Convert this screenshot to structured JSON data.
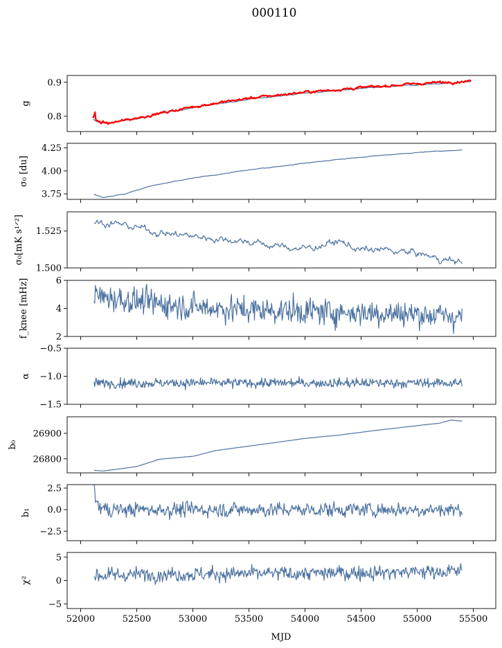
{
  "figure": {
    "title": "000110",
    "xlabel": "MJD"
  },
  "colors": {
    "series": "#4c72a0",
    "reference": "#ff0000",
    "axis": "#000000"
  },
  "chart_data": {
    "type": "line",
    "title": "000110",
    "xlabel": "MJD",
    "xlim": [
      51880,
      55700
    ],
    "xticks": [
      52000,
      52500,
      53000,
      53500,
      54000,
      54500,
      55000,
      55500
    ],
    "grid": false,
    "panels": [
      {
        "id": "g",
        "ylabel": "g",
        "ylim": [
          0.755,
          0.92
        ],
        "yticks": [
          0.8,
          0.9
        ],
        "yticklabels": [
          "0.8",
          "0.9"
        ],
        "series": [
          {
            "color": "#4c72a0",
            "x_range": [
              52110,
              55480
            ],
            "noise": 0.002,
            "smooth": 0.9,
            "trend": [
              [
                52110,
                0.79
              ],
              [
                52150,
                0.783
              ],
              [
                52250,
                0.779
              ],
              [
                52500,
                0.793
              ],
              [
                53000,
                0.826
              ],
              [
                53500,
                0.85
              ],
              [
                54000,
                0.868
              ],
              [
                54500,
                0.881
              ],
              [
                55000,
                0.892
              ],
              [
                55480,
                0.902
              ]
            ]
          },
          {
            "color": "#ff0000",
            "x_range": [
              52110,
              55480
            ],
            "noise": 0.0025,
            "smooth": 0.7,
            "trend": [
              [
                52110,
                0.795
              ],
              [
                52130,
                0.812
              ],
              [
                52135,
                0.788
              ],
              [
                52160,
                0.783
              ],
              [
                52250,
                0.779
              ],
              [
                52500,
                0.795
              ],
              [
                53000,
                0.828
              ],
              [
                53500,
                0.853
              ],
              [
                54000,
                0.871
              ],
              [
                54500,
                0.884
              ],
              [
                55000,
                0.896
              ],
              [
                55480,
                0.904
              ]
            ]
          }
        ]
      },
      {
        "id": "sigma0-du",
        "ylabel": "σ₀ [du]",
        "ylim": [
          3.69,
          4.3
        ],
        "yticks": [
          3.75,
          4.0,
          4.25
        ],
        "yticklabels": [
          "3.75",
          "4.00",
          "4.25"
        ],
        "series": [
          {
            "color": "#4c72a0",
            "x_range": [
              52120,
              55400
            ],
            "noise": 0.004,
            "smooth": 0.85,
            "trend": [
              [
                52120,
                3.745
              ],
              [
                52200,
                3.715
              ],
              [
                52400,
                3.75
              ],
              [
                52600,
                3.83
              ],
              [
                53000,
                3.92
              ],
              [
                53500,
                4.01
              ],
              [
                54000,
                4.085
              ],
              [
                54500,
                4.15
              ],
              [
                55000,
                4.2
              ],
              [
                55400,
                4.23
              ]
            ]
          }
        ]
      },
      {
        "id": "sigma0-mks",
        "ylabel": "σ₀[mK s¹ᐟ²]",
        "ylim": [
          1.5,
          1.538
        ],
        "yticks": [
          1.5,
          1.525
        ],
        "yticklabels": [
          "1.500",
          "1.525"
        ],
        "series": [
          {
            "color": "#4c72a0",
            "x_range": [
              52120,
              55400
            ],
            "noise": 0.0022,
            "smooth": 0.8,
            "trend": [
              [
                52120,
                1.531
              ],
              [
                52300,
                1.53
              ],
              [
                52800,
                1.523
              ],
              [
                53200,
                1.52
              ],
              [
                53500,
                1.518
              ],
              [
                53700,
                1.515
              ],
              [
                54000,
                1.513
              ],
              [
                54300,
                1.518
              ],
              [
                54500,
                1.512
              ],
              [
                54700,
                1.512
              ],
              [
                55000,
                1.51
              ],
              [
                55200,
                1.506
              ],
              [
                55400,
                1.504
              ]
            ]
          }
        ]
      },
      {
        "id": "fknee",
        "ylabel": "f_knee [mHz]",
        "ylim": [
          2,
          6
        ],
        "yticks": [
          2,
          4,
          6
        ],
        "yticklabels": [
          "2",
          "4",
          "6"
        ],
        "series": [
          {
            "color": "#4c72a0",
            "x_range": [
              52120,
              55400
            ],
            "noise": 0.55,
            "smooth": 0.1,
            "trend": [
              [
                52120,
                4.9
              ],
              [
                52500,
                4.5
              ],
              [
                53000,
                4.1
              ],
              [
                53500,
                3.9
              ],
              [
                54000,
                3.8
              ],
              [
                54500,
                3.7
              ],
              [
                55000,
                3.6
              ],
              [
                55400,
                3.4
              ]
            ]
          }
        ]
      },
      {
        "id": "alpha",
        "ylabel": "α",
        "ylim": [
          -1.5,
          -0.5
        ],
        "yticks": [
          -1.5,
          -1.0,
          -0.5
        ],
        "yticklabels": [
          "−1.5",
          "−1.0",
          "−0.5"
        ],
        "series": [
          {
            "color": "#4c72a0",
            "x_range": [
              52120,
              55400
            ],
            "noise": 0.05,
            "smooth": 0.1,
            "trend": [
              [
                52120,
                -1.12
              ],
              [
                55400,
                -1.12
              ]
            ]
          }
        ]
      },
      {
        "id": "b0",
        "ylabel": "b₀",
        "ylim": [
          26745,
          26965
        ],
        "yticks": [
          26800,
          26900
        ],
        "yticklabels": [
          "26800",
          "26900"
        ],
        "series": [
          {
            "color": "#4c72a0",
            "x_range": [
              52120,
              55400
            ],
            "noise": 0.4,
            "smooth": 0.9,
            "trend": [
              [
                52120,
                26755
              ],
              [
                52200,
                26752
              ],
              [
                52500,
                26770
              ],
              [
                52700,
                26798
              ],
              [
                53000,
                26810
              ],
              [
                53200,
                26832
              ],
              [
                53500,
                26850
              ],
              [
                53800,
                26868
              ],
              [
                54000,
                26880
              ],
              [
                54300,
                26893
              ],
              [
                54600,
                26910
              ],
              [
                55000,
                26930
              ],
              [
                55200,
                26940
              ],
              [
                55300,
                26952
              ],
              [
                55400,
                26948
              ]
            ]
          }
        ]
      },
      {
        "id": "b1",
        "ylabel": "b₁",
        "ylim": [
          -3.6,
          2.9
        ],
        "yticks": [
          -2.5,
          0.0,
          2.5
        ],
        "yticklabels": [
          "−2.5",
          "0.0",
          "2.5"
        ],
        "series": [
          {
            "color": "#4c72a0",
            "x_range": [
              52120,
              55400
            ],
            "noise": 0.55,
            "smooth": 0.2,
            "trend": [
              [
                52120,
                2.3
              ],
              [
                52150,
                0.4
              ],
              [
                52250,
                0.0
              ],
              [
                55400,
                0.0
              ]
            ]
          }
        ]
      },
      {
        "id": "chi2",
        "ylabel": "χ²",
        "ylim": [
          -6,
          6
        ],
        "yticks": [
          -5,
          0,
          5
        ],
        "yticklabels": [
          "−5",
          "0",
          "5"
        ],
        "series": [
          {
            "color": "#4c72a0",
            "x_range": [
              52120,
              55400
            ],
            "noise": 1.0,
            "smooth": 0.2,
            "trend": [
              [
                52120,
                1.0
              ],
              [
                52500,
                1.3
              ],
              [
                54000,
                1.5
              ],
              [
                55400,
                2.0
              ]
            ]
          }
        ]
      }
    ]
  }
}
